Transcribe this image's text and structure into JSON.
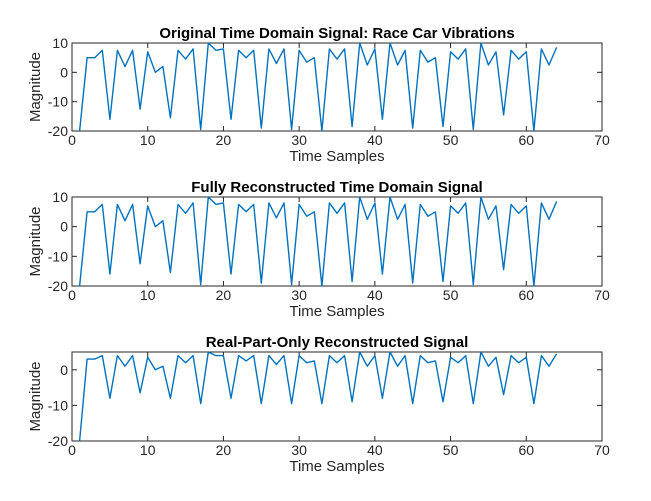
{
  "chart_data": [
    {
      "type": "line",
      "title": "Original Time Domain Signal: Race Car Vibrations",
      "xlabel": "Time Samples",
      "ylabel": "Magnitude",
      "xlim": [
        0,
        70
      ],
      "ylim": [
        -20,
        10
      ],
      "xticks": [
        0,
        10,
        20,
        30,
        40,
        50,
        60,
        70
      ],
      "yticks": [
        -20,
        -10,
        0,
        10
      ],
      "grid": false,
      "color": "#0072BD",
      "x": [
        1,
        2,
        3,
        4,
        5,
        6,
        7,
        8,
        9,
        10,
        11,
        12,
        13,
        14,
        15,
        16,
        17,
        18,
        19,
        20,
        21,
        22,
        23,
        24,
        25,
        26,
        27,
        28,
        29,
        30,
        31,
        32,
        33,
        34,
        35,
        36,
        37,
        38,
        39,
        40,
        41,
        42,
        43,
        44,
        45,
        46,
        47,
        48,
        49,
        50,
        51,
        52,
        53,
        54,
        55,
        56,
        57,
        58,
        59,
        60,
        61,
        62,
        63,
        64
      ],
      "y": [
        -20,
        5,
        5,
        7.5,
        -16,
        7.5,
        2,
        7.5,
        -12.5,
        7,
        0,
        2,
        -15.5,
        7.5,
        4.5,
        8,
        -19.5,
        10,
        7.5,
        8,
        -16,
        7.5,
        5,
        7.5,
        -19,
        8,
        3,
        8,
        -19.5,
        7.5,
        3.5,
        5,
        -20,
        8,
        4.5,
        8,
        -18.5,
        10,
        2.5,
        8,
        -16,
        10,
        2.5,
        7.5,
        -19,
        7.5,
        3.5,
        5,
        -18.5,
        7,
        4.5,
        8,
        -19.5,
        10,
        2.5,
        7,
        -14.5,
        7.5,
        4.5,
        7,
        -20,
        8,
        2.5,
        8.5
      ]
    },
    {
      "type": "line",
      "title": "Fully Reconstructed Time Domain Signal",
      "xlabel": "Time Samples",
      "ylabel": "Magnitude",
      "xlim": [
        0,
        70
      ],
      "ylim": [
        -20,
        10
      ],
      "xticks": [
        0,
        10,
        20,
        30,
        40,
        50,
        60,
        70
      ],
      "yticks": [
        -20,
        -10,
        0,
        10
      ],
      "grid": false,
      "color": "#0072BD",
      "x": [
        1,
        2,
        3,
        4,
        5,
        6,
        7,
        8,
        9,
        10,
        11,
        12,
        13,
        14,
        15,
        16,
        17,
        18,
        19,
        20,
        21,
        22,
        23,
        24,
        25,
        26,
        27,
        28,
        29,
        30,
        31,
        32,
        33,
        34,
        35,
        36,
        37,
        38,
        39,
        40,
        41,
        42,
        43,
        44,
        45,
        46,
        47,
        48,
        49,
        50,
        51,
        52,
        53,
        54,
        55,
        56,
        57,
        58,
        59,
        60,
        61,
        62,
        63,
        64
      ],
      "y": [
        -20,
        5,
        5,
        7.5,
        -16,
        7.5,
        2,
        7.5,
        -12.5,
        7,
        0,
        2,
        -15.5,
        7.5,
        4.5,
        8,
        -19.5,
        10,
        7.5,
        8,
        -16,
        7.5,
        5,
        7.5,
        -19,
        8,
        3,
        8,
        -19.5,
        7.5,
        3.5,
        5,
        -20,
        8,
        4.5,
        8,
        -18.5,
        10,
        2.5,
        8,
        -16,
        10,
        2.5,
        7.5,
        -19,
        7.5,
        3.5,
        5,
        -18.5,
        7,
        4.5,
        8,
        -19.5,
        10,
        2.5,
        7,
        -14.5,
        7.5,
        4.5,
        7,
        -20,
        8,
        2.5,
        8.5
      ]
    },
    {
      "type": "line",
      "title": "Real-Part-Only Reconstructed Signal",
      "xlabel": "Time Samples",
      "ylabel": "Magnitude",
      "xlim": [
        0,
        70
      ],
      "ylim": [
        -20,
        5
      ],
      "xticks": [
        0,
        10,
        20,
        30,
        40,
        50,
        60,
        70
      ],
      "yticks": [
        -20,
        -10,
        0
      ],
      "grid": false,
      "color": "#0072BD",
      "x": [
        1,
        2,
        3,
        4,
        5,
        6,
        7,
        8,
        9,
        10,
        11,
        12,
        13,
        14,
        15,
        16,
        17,
        18,
        19,
        20,
        21,
        22,
        23,
        24,
        25,
        26,
        27,
        28,
        29,
        30,
        31,
        32,
        33,
        34,
        35,
        36,
        37,
        38,
        39,
        40,
        41,
        42,
        43,
        44,
        45,
        46,
        47,
        48,
        49,
        50,
        51,
        52,
        53,
        54,
        55,
        56,
        57,
        58,
        59,
        60,
        61,
        62,
        63,
        64
      ],
      "y": [
        -20,
        3,
        3,
        4,
        -8,
        4,
        1,
        4,
        -6.5,
        3.5,
        0,
        1,
        -8,
        4,
        2,
        4,
        -9.5,
        5,
        4,
        4,
        -8,
        4,
        2.5,
        4,
        -9.5,
        4,
        1.5,
        4,
        -9.5,
        4,
        2,
        2.5,
        -9.5,
        4,
        2,
        4,
        -9,
        5,
        1,
        4,
        -8,
        5,
        1,
        4,
        -9.5,
        4,
        2,
        2.5,
        -9,
        3.5,
        2,
        4,
        -9.5,
        5,
        1,
        3.5,
        -7,
        4,
        2,
        3.5,
        -9.5,
        4,
        1,
        4.5
      ]
    }
  ]
}
